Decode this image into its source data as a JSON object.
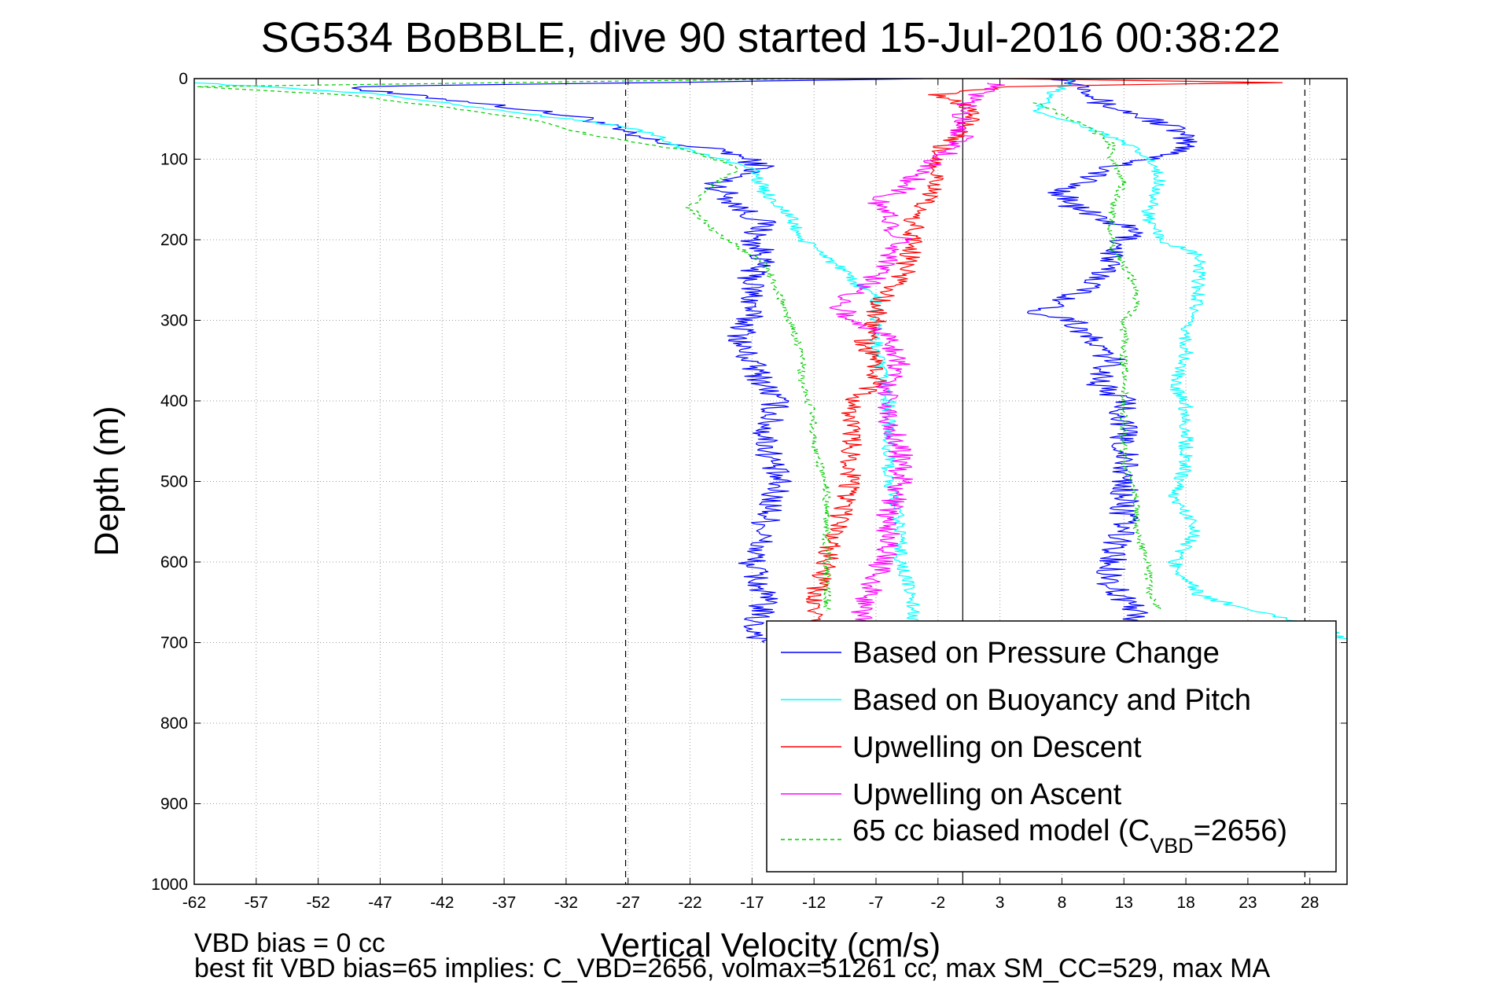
{
  "chart_data": {
    "type": "line",
    "title": "SG534 BoBBLE, dive 90 started 15-Jul-2016 00:38:22",
    "xlabel": "Vertical Velocity (cm/s)",
    "ylabel": "Depth (m)",
    "xlim": [
      -62,
      31
    ],
    "ylim": [
      0,
      1000
    ],
    "y_reversed": true,
    "grid": true,
    "x_ticks": [
      "-62",
      "-57",
      "-52",
      "-47",
      "-42",
      "-37",
      "-32",
      "-27",
      "-22",
      "-17",
      "-12",
      "-7",
      "-2",
      "3",
      "8",
      "13",
      "18",
      "23",
      "28"
    ],
    "y_ticks": [
      "0",
      "100",
      "200",
      "300",
      "400",
      "500",
      "600",
      "700",
      "800",
      "900",
      "1000"
    ],
    "reference_lines": [
      {
        "x": -27.2,
        "style": "dashed",
        "color": "#000000"
      },
      {
        "x": 0,
        "style": "solid",
        "color": "#000000"
      },
      {
        "x": 27.6,
        "style": "dashed",
        "color": "#000000"
      }
    ],
    "legend_position": "bottom-right",
    "series": [
      {
        "name": "Based on Pressure Change",
        "color": "#0000ff",
        "style": "solid",
        "noise": 1.2,
        "points": [
          [
            -2,
            0
          ],
          [
            -49,
            10
          ],
          [
            -48,
            15
          ],
          [
            -39,
            30
          ],
          [
            -30,
            50
          ],
          [
            -27,
            70
          ],
          [
            -24,
            80
          ],
          [
            -19,
            90
          ],
          [
            -16,
            110
          ],
          [
            -18,
            120
          ],
          [
            -20,
            130
          ],
          [
            -18,
            160
          ],
          [
            -16,
            180
          ],
          [
            -17,
            200
          ],
          [
            -16,
            220
          ],
          [
            -17,
            240
          ],
          [
            -17,
            280
          ],
          [
            -18,
            330
          ],
          [
            -16,
            380
          ],
          [
            -15,
            400
          ],
          [
            -16,
            440
          ],
          [
            -15,
            500
          ],
          [
            -16,
            560
          ],
          [
            -17,
            600
          ],
          [
            -16,
            650
          ],
          [
            -17,
            680
          ],
          [
            -16,
            700
          ]
        ]
      },
      {
        "name": "Based on Pressure Change",
        "color": "#0000ff",
        "style": "solid",
        "noise": 1.2,
        "points": [
          [
            8,
            0
          ],
          [
            10,
            10
          ],
          [
            11,
            20
          ],
          [
            11,
            30
          ],
          [
            15,
            50
          ],
          [
            17,
            60
          ],
          [
            18,
            80
          ],
          [
            18,
            90
          ],
          [
            12,
            110
          ],
          [
            8,
            140
          ],
          [
            9,
            160
          ],
          [
            14,
            190
          ],
          [
            13,
            200
          ],
          [
            12,
            220
          ],
          [
            11,
            250
          ],
          [
            9,
            270
          ],
          [
            6,
            290
          ],
          [
            9,
            300
          ],
          [
            10,
            320
          ],
          [
            12,
            350
          ],
          [
            11,
            380
          ],
          [
            13,
            400
          ],
          [
            13,
            450
          ],
          [
            13,
            500
          ],
          [
            13,
            550
          ],
          [
            12,
            600
          ],
          [
            12,
            630
          ],
          [
            14,
            660
          ],
          [
            14,
            680
          ]
        ]
      },
      {
        "name": "Based on Buoyancy and Pitch",
        "color": "#00ffff",
        "style": "solid",
        "noise": 0.6,
        "points": [
          [
            -62,
            5
          ],
          [
            -48,
            18
          ],
          [
            -42,
            30
          ],
          [
            -32,
            50
          ],
          [
            -27,
            60
          ],
          [
            -25,
            70
          ],
          [
            -22,
            90
          ],
          [
            -17,
            110
          ],
          [
            -16,
            140
          ],
          [
            -14,
            170
          ],
          [
            -13,
            200
          ],
          [
            -11,
            220
          ],
          [
            -9,
            250
          ],
          [
            -7,
            270
          ],
          [
            -7,
            300
          ],
          [
            -7,
            340
          ],
          [
            -6,
            400
          ],
          [
            -6,
            450
          ],
          [
            -6,
            500
          ],
          [
            -5,
            560
          ],
          [
            -5,
            600
          ],
          [
            -4,
            650
          ],
          [
            -4,
            700
          ]
        ]
      },
      {
        "name": "Based on Buoyancy and Pitch",
        "color": "#00ffff",
        "style": "solid",
        "noise": 0.6,
        "points": [
          [
            9,
            0
          ],
          [
            7,
            20
          ],
          [
            6,
            40
          ],
          [
            10,
            60
          ],
          [
            13,
            80
          ],
          [
            15,
            100
          ],
          [
            16,
            130
          ],
          [
            15,
            160
          ],
          [
            15,
            180
          ],
          [
            16,
            200
          ],
          [
            19,
            220
          ],
          [
            19,
            250
          ],
          [
            19,
            280
          ],
          [
            18,
            300
          ],
          [
            18,
            340
          ],
          [
            17,
            380
          ],
          [
            18,
            400
          ],
          [
            18,
            440
          ],
          [
            18,
            480
          ],
          [
            17,
            520
          ],
          [
            19,
            560
          ],
          [
            17,
            600
          ],
          [
            19,
            640
          ],
          [
            23,
            660
          ],
          [
            29,
            680
          ],
          [
            31,
            700
          ]
        ]
      },
      {
        "name": "Upwelling on Descent",
        "color": "#ff0000",
        "style": "solid",
        "noise": 0.9,
        "points": [
          [
            4,
            0
          ],
          [
            25,
            5
          ],
          [
            4,
            10
          ],
          [
            -2,
            20
          ],
          [
            1,
            40
          ],
          [
            0,
            60
          ],
          [
            -2,
            90
          ],
          [
            -2,
            130
          ],
          [
            -4,
            170
          ],
          [
            -4,
            210
          ],
          [
            -5,
            250
          ],
          [
            -7,
            280
          ],
          [
            -7,
            300
          ],
          [
            -8,
            330
          ],
          [
            -7,
            350
          ],
          [
            -7,
            380
          ],
          [
            -9,
            400
          ],
          [
            -9,
            450
          ],
          [
            -9,
            500
          ],
          [
            -10,
            550
          ],
          [
            -11,
            600
          ],
          [
            -12,
            640
          ],
          [
            -12,
            680
          ],
          [
            -13,
            700
          ]
        ]
      },
      {
        "name": "Upwelling on Ascent",
        "color": "#ff00ff",
        "style": "solid",
        "noise": 1.0,
        "points": [
          [
            3,
            5
          ],
          [
            1,
            20
          ],
          [
            0,
            40
          ],
          [
            0,
            70
          ],
          [
            -1,
            90
          ],
          [
            -3,
            110
          ],
          [
            -5,
            140
          ],
          [
            -7,
            150
          ],
          [
            -6,
            170
          ],
          [
            -5,
            200
          ],
          [
            -6,
            230
          ],
          [
            -8,
            260
          ],
          [
            -10,
            280
          ],
          [
            -9,
            300
          ],
          [
            -6,
            320
          ],
          [
            -5,
            350
          ],
          [
            -6,
            380
          ],
          [
            -6,
            420
          ],
          [
            -5,
            460
          ],
          [
            -5,
            500
          ],
          [
            -6,
            540
          ],
          [
            -6,
            580
          ],
          [
            -7,
            620
          ],
          [
            -8,
            650
          ],
          [
            -8,
            680
          ]
        ]
      },
      {
        "name": "65 cc biased model (C_VBD=2656)",
        "color": "#00cc00",
        "style": "dashed",
        "noise": 0.35,
        "points": [
          [
            -12,
            0
          ],
          [
            -62,
            10
          ],
          [
            -50,
            20
          ],
          [
            -42,
            35
          ],
          [
            -35,
            50
          ],
          [
            -30,
            70
          ],
          [
            -26,
            80
          ],
          [
            -22,
            90
          ],
          [
            -18,
            110
          ],
          [
            -20,
            130
          ],
          [
            -22,
            160
          ],
          [
            -20,
            190
          ],
          [
            -18,
            210
          ],
          [
            -16,
            230
          ],
          [
            -15,
            260
          ],
          [
            -14,
            300
          ],
          [
            -13,
            340
          ],
          [
            -13,
            380
          ],
          [
            -12,
            420
          ],
          [
            -12,
            460
          ],
          [
            -11,
            500
          ],
          [
            -11,
            560
          ],
          [
            -11,
            600
          ],
          [
            -11,
            640
          ],
          [
            -11,
            660
          ]
        ]
      },
      {
        "name": "65 cc biased model (C_VBD=2656)",
        "color": "#00cc00",
        "style": "dashed",
        "noise": 0.35,
        "points": [
          [
            6,
            30
          ],
          [
            10,
            60
          ],
          [
            12,
            80
          ],
          [
            12,
            100
          ],
          [
            13,
            130
          ],
          [
            12,
            160
          ],
          [
            12,
            190
          ],
          [
            12,
            210
          ],
          [
            13,
            230
          ],
          [
            14,
            260
          ],
          [
            14,
            280
          ],
          [
            13,
            300
          ],
          [
            13,
            330
          ],
          [
            13,
            360
          ],
          [
            13,
            390
          ],
          [
            13,
            420
          ],
          [
            13,
            450
          ],
          [
            13,
            480
          ],
          [
            14,
            520
          ],
          [
            14,
            560
          ],
          [
            15,
            600
          ],
          [
            15,
            640
          ],
          [
            16,
            660
          ]
        ]
      }
    ]
  },
  "legend": {
    "items": [
      {
        "label": "Based on Pressure Change",
        "color": "#0000ff",
        "dashed": false
      },
      {
        "label": "Based on Buoyancy and Pitch",
        "color": "#00ffff",
        "dashed": false
      },
      {
        "label": "Upwelling on Descent",
        "color": "#ff0000",
        "dashed": false
      },
      {
        "label": "Upwelling on Ascent",
        "color": "#ff00ff",
        "dashed": false
      }
    ],
    "model_item": {
      "color": "#00cc00",
      "dashed": true,
      "prefix": "65 cc biased model (C",
      "subscript": "VBD",
      "suffix": "=2656)"
    }
  },
  "notes": {
    "vbd_bias": "VBD bias = 0 cc",
    "best_fit": "best fit VBD bias=65 implies: C_VBD=2656, volmax=51261 cc, max SM_CC=529, max MA"
  }
}
